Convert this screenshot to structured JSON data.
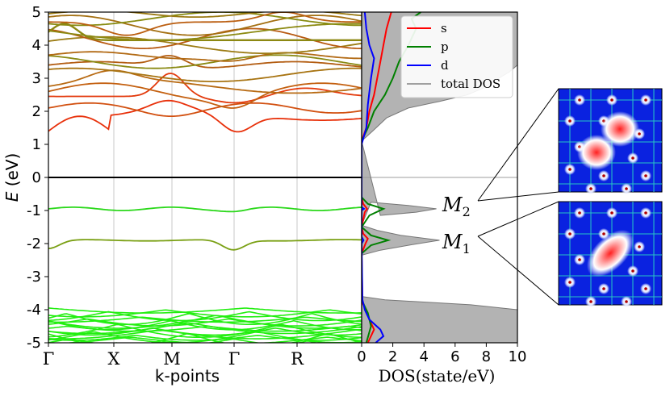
{
  "chart_data": [
    {
      "type": "line",
      "xlabel": "k-points",
      "ylabel_prefix": "E",
      "ylabel_unit": "(eV)",
      "ylim": [
        -5,
        5
      ],
      "yticks": [
        "5",
        "4",
        "3",
        "2",
        "1",
        "0",
        "-1",
        "-2",
        "-3",
        "-4",
        "-5"
      ],
      "kpoints": [
        "Γ",
        "X",
        "M",
        "Γ",
        "R"
      ],
      "fermi_level": 0,
      "grid": "vertical at k-points",
      "bands": {
        "conduction_min": 1.4,
        "valence_top_levels": [
          -0.95,
          -1.9
        ],
        "deep_valence_range": [
          -5,
          -3.9
        ]
      }
    },
    {
      "type": "area",
      "xlabel": "DOS(state/eV)",
      "xlim": [
        0,
        10
      ],
      "xticks": [
        "0",
        "2",
        "4",
        "6",
        "8",
        "10"
      ],
      "ylim": [
        -5,
        5
      ],
      "legend_position": "top-right",
      "series": [
        {
          "name": "s",
          "color": "#ff0000"
        },
        {
          "name": "p",
          "color": "#008000"
        },
        {
          "name": "d",
          "color": "#0000ff"
        },
        {
          "name": "total DOS",
          "color": "#a0a0a0"
        }
      ],
      "total_dos": {
        "E": [
          -5,
          -4.6,
          -4.2,
          -4.0,
          -3.85,
          -3.7,
          -3.6,
          -2.35,
          -2.2,
          -2.05,
          -1.9,
          -1.75,
          -1.6,
          -1.45,
          -0.75,
          -0.85,
          -0.95,
          -1.05,
          -1.15,
          1.1,
          1.4,
          1.8,
          2.1,
          2.3,
          2.5,
          2.7,
          3.0,
          3.2,
          3.4,
          3.6,
          4.0,
          4.4,
          4.8,
          5
        ],
        "dos": [
          10,
          10,
          10,
          10,
          7,
          1.5,
          0,
          0,
          1.2,
          3,
          5,
          2.5,
          1,
          0,
          0.6,
          3,
          4.8,
          3.5,
          1.2,
          0,
          0.7,
          1.6,
          3,
          5,
          6.8,
          7.8,
          8.8,
          9.5,
          10,
          10,
          10,
          10,
          10,
          10
        ]
      }
    }
  ],
  "annotations": {
    "m2_base": "M",
    "m2_sub": "2",
    "m1_base": "M",
    "m1_sub": "1"
  },
  "orbitals": [
    {
      "label": "M2",
      "lobes": "two"
    },
    {
      "label": "M1",
      "lobes": "one"
    }
  ]
}
